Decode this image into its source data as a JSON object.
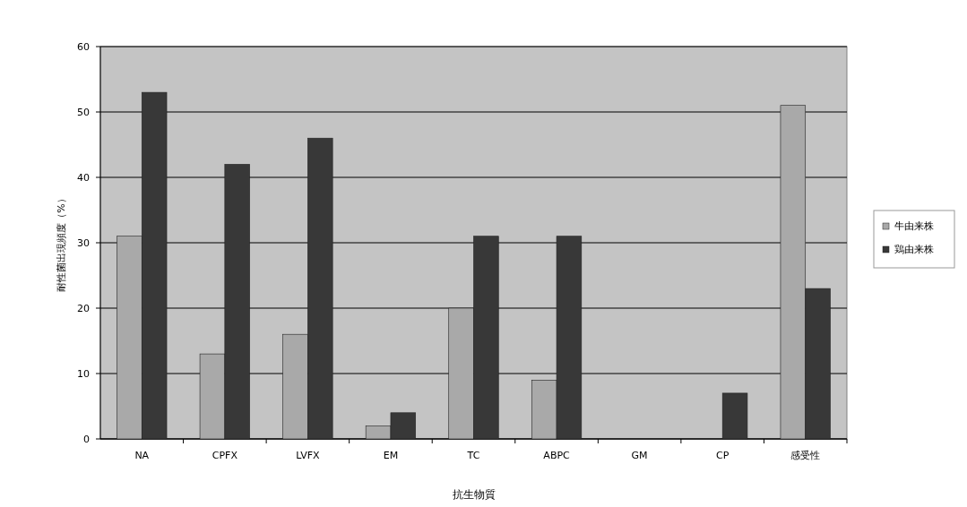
{
  "chart_data": {
    "type": "bar",
    "xlabel": "抗生物質",
    "ylabel": "耐性菌出現頻度（%）",
    "categories": [
      "NA",
      "CPFX",
      "LVFX",
      "EM",
      "TC",
      "ABPC",
      "GM",
      "CP",
      "感受性"
    ],
    "series": [
      {
        "name": "牛由来株",
        "color": "#a9a9a9",
        "values": [
          31,
          13,
          16,
          2,
          20,
          9,
          0,
          0,
          51
        ]
      },
      {
        "name": "鶏由来株",
        "color": "#383838",
        "values": [
          53,
          42,
          46,
          4,
          31,
          31,
          0,
          7,
          23
        ]
      }
    ],
    "ylim": [
      0,
      60
    ],
    "yticks": [
      0,
      10,
      20,
      30,
      40,
      50,
      60
    ],
    "grid": "y",
    "legend": "right"
  }
}
